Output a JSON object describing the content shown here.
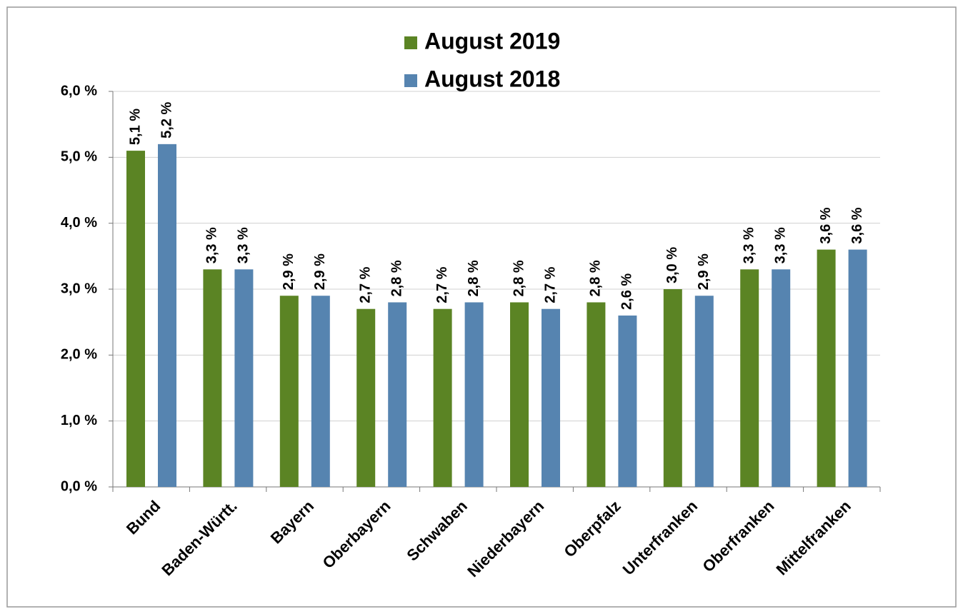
{
  "chart_data": {
    "type": "bar",
    "categories": [
      "Bund",
      "Baden-Württ.",
      "Bayern",
      "Oberbayern",
      "Schwaben",
      "Niederbayern",
      "Oberpfalz",
      "Unterfranken",
      "Oberfranken",
      "Mittelfranken"
    ],
    "series": [
      {
        "name": "August 2019",
        "color": "#5b8424",
        "values": [
          5.1,
          3.3,
          2.9,
          2.7,
          2.7,
          2.8,
          2.8,
          3.0,
          3.3,
          3.6
        ],
        "value_labels": [
          "5,1 %",
          "3,3 %",
          "2,9 %",
          "2,7 %",
          "2,7 %",
          "2,8 %",
          "2,8 %",
          "3,0 %",
          "3,3 %",
          "3,6 %"
        ]
      },
      {
        "name": "August 2018",
        "color": "#5684b0",
        "values": [
          5.2,
          3.3,
          2.9,
          2.8,
          2.8,
          2.7,
          2.6,
          2.9,
          3.3,
          3.6
        ],
        "value_labels": [
          "5,2 %",
          "3,3 %",
          "2,9 %",
          "2,8 %",
          "2,8 %",
          "2,7 %",
          "2,6 %",
          "2,9 %",
          "3,3 %",
          "3,6 %"
        ]
      }
    ],
    "ylim": [
      0,
      6
    ],
    "yticks": [
      {
        "value": 0,
        "label": "0,0 %"
      },
      {
        "value": 1,
        "label": "1,0 %"
      },
      {
        "value": 2,
        "label": "2,0 %"
      },
      {
        "value": 3,
        "label": "3,0 %"
      },
      {
        "value": 4,
        "label": "4,0 %"
      },
      {
        "value": 5,
        "label": "5,0 %"
      },
      {
        "value": 6,
        "label": "6,0 %"
      }
    ],
    "grid": true
  }
}
